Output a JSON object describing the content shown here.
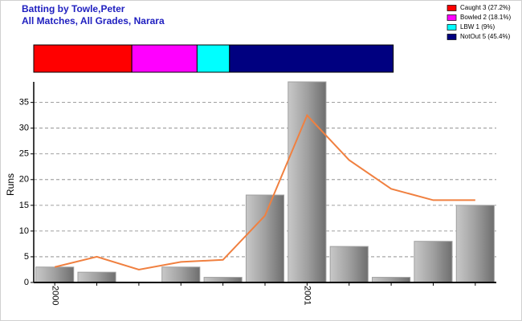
{
  "chart_data": [
    {
      "type": "stacked-bar",
      "xlim": [
        0,
        100
      ],
      "series": [
        {
          "name": "Caught 3 (27.2%)",
          "color": "#ff0000",
          "values": [
            27.2
          ]
        },
        {
          "name": "Bowled 2 (18.1%)",
          "color": "#ff00ff",
          "values": [
            18.1
          ]
        },
        {
          "name": "LBW 1 (9%)",
          "color": "#00ffff",
          "values": [
            9
          ]
        },
        {
          "name": "NotOut 5 (45.4%)",
          "color": "#000080",
          "values": [
            45.4
          ]
        }
      ]
    },
    {
      "type": "bar",
      "title": "Batting by Towle,Peter",
      "subtitle": "All Matches, All Grades, Narara",
      "y_label": "Runs",
      "categories": [
        "2000",
        null,
        null,
        null,
        null,
        null,
        "2001",
        null,
        null,
        null,
        null
      ],
      "ylim": [
        0,
        39
      ],
      "yticks": [
        0,
        5,
        10,
        15,
        20,
        25,
        30,
        35
      ],
      "grid": true,
      "series": [
        {
          "type": "bar",
          "colors": [
            "#a0a0a0",
            "#a0a0a0",
            "#008000",
            "#a0a0a0",
            "#a0a0a0",
            "#a0a0a0",
            "#a0a0a0",
            "#a0a0a0",
            "#a0a0a0",
            "#a0a0a0",
            "#a0a0a0"
          ],
          "values": [
            3,
            2,
            0,
            3,
            1,
            17,
            39,
            7,
            1,
            8,
            15
          ]
        },
        {
          "type": "line",
          "color": "#f08040",
          "values": [
            3,
            5,
            2.5,
            4,
            4.4,
            13,
            32.5,
            23.8,
            18.2,
            16,
            16
          ]
        }
      ]
    }
  ]
}
